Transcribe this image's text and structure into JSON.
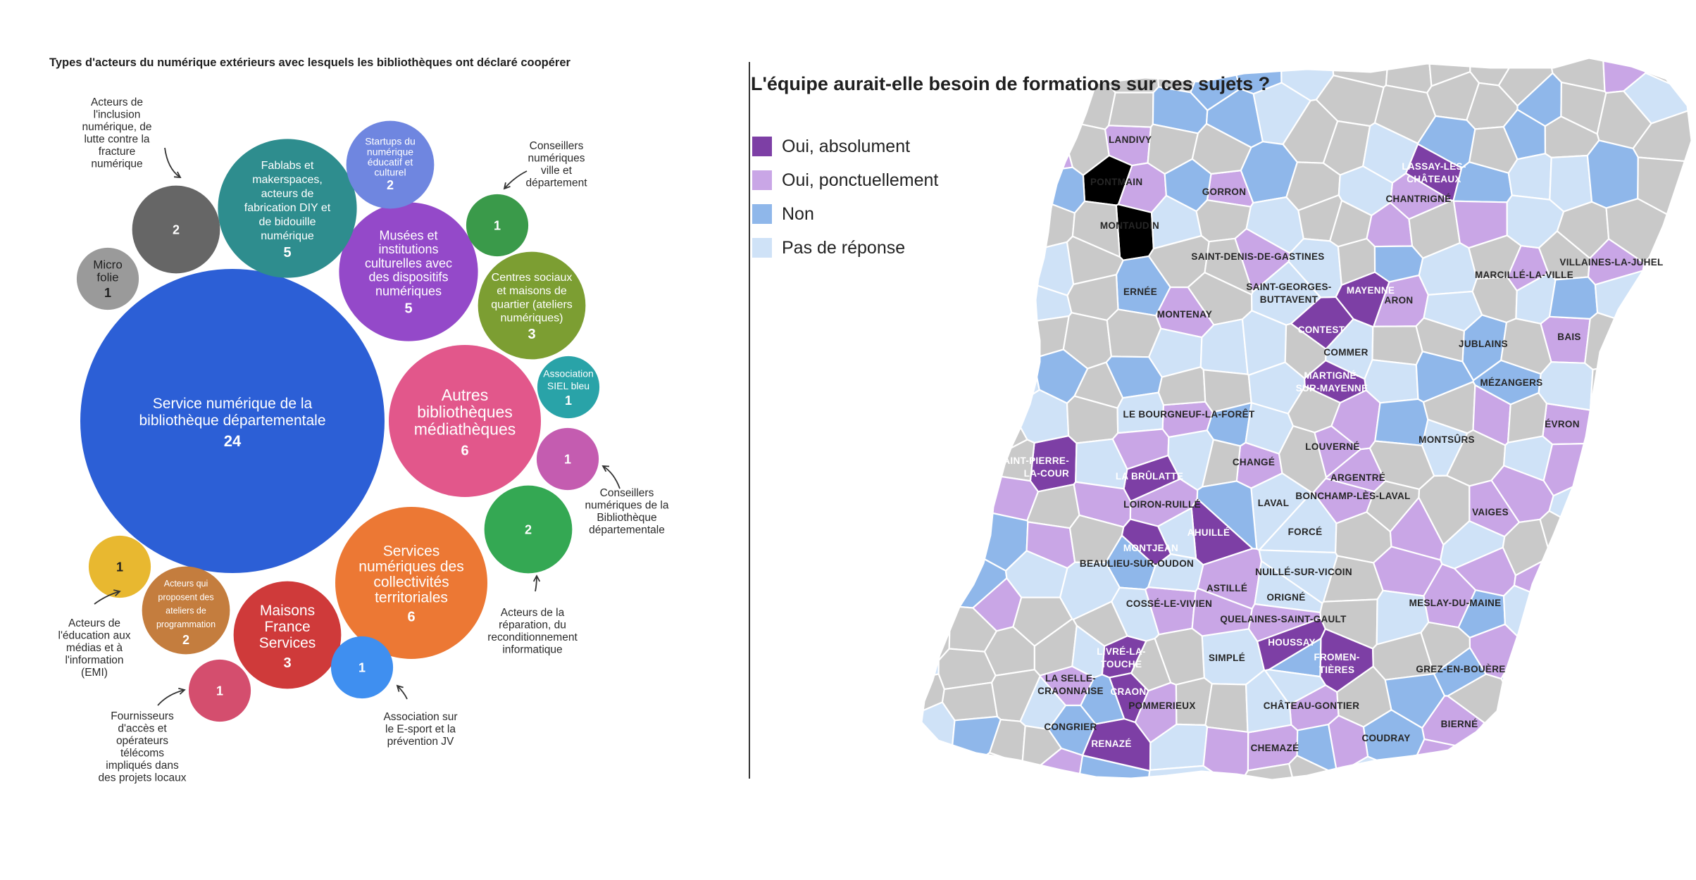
{
  "chart_data": [
    {
      "type": "bubble",
      "title": "Types d'acteurs du numérique extérieurs avec lesquels les bibliothèques ont déclaré coopérer",
      "bubbles": [
        {
          "label": [
            "Service numérique de la",
            "bibliothèque départementale"
          ],
          "value": 24,
          "color": "#2c5fd6",
          "text": "#ffffff"
        },
        {
          "label": [
            "Autres",
            "bibliothèques",
            "médiathèques"
          ],
          "value": 6,
          "color": "#e2578b",
          "text": "#ffffff"
        },
        {
          "label": [
            "Services",
            "numériques des",
            "collectivités",
            "territoriales"
          ],
          "value": 6,
          "color": "#ec7834",
          "text": "#ffffff"
        },
        {
          "label": [
            "Musées et",
            "institutions",
            "culturelles avec",
            "des dispositifs",
            "numériques"
          ],
          "value": 5,
          "color": "#9449c9",
          "text": "#ffffff"
        },
        {
          "label": [
            "Fablabs et",
            "makerspaces,",
            "acteurs de",
            "fabrication DIY et",
            "de bidouille",
            "numérique"
          ],
          "value": 5,
          "color": "#2e8d8e",
          "text": "#ffffff"
        },
        {
          "label": [
            "Maisons",
            "France",
            "Services"
          ],
          "value": 3,
          "color": "#cf3a3a",
          "text": "#ffffff"
        },
        {
          "label": [
            "Centres sociaux",
            "et maisons de",
            "quartier (ateliers",
            "numériques)"
          ],
          "value": 3,
          "color": "#7c9e32",
          "text": "#ffffff"
        },
        {
          "label": [],
          "value": 2,
          "color": "#666666",
          "text": "#ffffff"
        },
        {
          "label": [],
          "value": 2,
          "color": "#34a853",
          "text": "#ffffff"
        },
        {
          "label": [
            "Startups du",
            "numérique",
            "éducatif et",
            "culturel"
          ],
          "value": 2,
          "color": "#6f86e0",
          "text": "#ffffff"
        },
        {
          "label": [
            "Acteurs qui",
            "proposent des",
            "ateliers de",
            "programmation"
          ],
          "value": 2,
          "color": "#c47d3e",
          "text": "#ffffff"
        },
        {
          "label": [
            "Micro",
            "folie"
          ],
          "value": 1,
          "color": "#9a9a9a",
          "text": "#1f1f1f"
        },
        {
          "label": [],
          "value": 1,
          "color": "#3a9a4a",
          "text": "#ffffff"
        },
        {
          "label": [
            "Association",
            "SIEL bleu"
          ],
          "value": 1,
          "color": "#29a3a8",
          "text": "#ffffff"
        },
        {
          "label": [],
          "value": 1,
          "color": "#c45cb0",
          "text": "#ffffff"
        },
        {
          "label": [],
          "value": 1,
          "color": "#e8b830",
          "text": "#1f1f1f"
        },
        {
          "label": [],
          "value": 1,
          "color": "#d44e6e",
          "text": "#ffffff"
        },
        {
          "label": [],
          "value": 1,
          "color": "#3f8ff0",
          "text": "#ffffff"
        }
      ],
      "annotations": [
        {
          "lines": [
            "Acteurs de",
            "l'inclusion",
            "numérique, de",
            "lutte contre la",
            "fracture",
            "numérique"
          ]
        },
        {
          "lines": [
            "Conseillers",
            "numériques",
            "ville et",
            "département"
          ]
        },
        {
          "lines": [
            "Conseillers",
            "numériques de la",
            "Bibliothèque",
            "départementale"
          ]
        },
        {
          "lines": [
            "Acteurs de la",
            "réparation, du",
            "reconditionnement",
            "informatique"
          ]
        },
        {
          "lines": [
            "Association sur",
            "le E-sport et la",
            "prévention JV"
          ]
        },
        {
          "lines": [
            "Fournisseurs",
            "d'accès et",
            "opérateurs",
            "télécoms",
            "impliqués dans",
            "des projets locaux"
          ]
        },
        {
          "lines": [
            "Acteurs de",
            "l'éducation aux",
            "médias et à",
            "l'information",
            "(EMI)"
          ]
        }
      ]
    },
    {
      "type": "choropleth",
      "title": "L'équipe aurait-elle besoin de formations sur ces sujets ?",
      "legend": [
        {
          "label": "Oui, absolument",
          "color": "#7d3fa5"
        },
        {
          "label": "Oui, ponctuellement",
          "color": "#c9a6e6"
        },
        {
          "label": "Non",
          "color": "#8fb7ea"
        },
        {
          "label": "Pas de réponse",
          "color": "#cfe2f7"
        }
      ],
      "no_data_color": "#c9c9c9",
      "places": [
        {
          "name": "LANDIVY",
          "cat": 1
        },
        {
          "name": "PONTMAIN",
          "cat": 4
        },
        {
          "name": "GORRON",
          "cat": 1
        },
        {
          "name": "LASSAY-LES-\nCHÂTEAUX",
          "cat": 0
        },
        {
          "name": "CHANTRIGNÉ",
          "cat": 1
        },
        {
          "name": "MONTAUDIN",
          "cat": 4
        },
        {
          "name": "SAINT-DENIS-DE-GASTINES",
          "cat": 1
        },
        {
          "name": "VILLAINES-LA-JUHEL",
          "cat": 1
        },
        {
          "name": "MARCILLÉ-LA-VILLE",
          "cat": 1
        },
        {
          "name": "ERNÉE",
          "cat": 2
        },
        {
          "name": "SAINT-GEORGES-\nBUTTAVENT",
          "cat": 3
        },
        {
          "name": "MAYENNE",
          "cat": 0
        },
        {
          "name": "ARON",
          "cat": 1
        },
        {
          "name": "MONTENAY",
          "cat": 1
        },
        {
          "name": "CONTEST",
          "cat": 0
        },
        {
          "name": "JUBLAINS",
          "cat": 2
        },
        {
          "name": "BAIS",
          "cat": 1
        },
        {
          "name": "COMMER",
          "cat": 3
        },
        {
          "name": "MARTIGNÉ-\nSUR-MAYENNE",
          "cat": 0
        },
        {
          "name": "MÉZANGERS",
          "cat": 2
        },
        {
          "name": "LE BOURGNEUF-LA-FORÊT",
          "cat": 1
        },
        {
          "name": "ÉVRON",
          "cat": 1
        },
        {
          "name": "MONTSÛRS",
          "cat": 3
        },
        {
          "name": "LOUVERNÉ",
          "cat": 1
        },
        {
          "name": "SAINT-PIERRE-\nLA-COUR",
          "cat": 0
        },
        {
          "name": "LA BRÛLATTE",
          "cat": 0
        },
        {
          "name": "CHANGÉ",
          "cat": 1
        },
        {
          "name": "ARGENTRÉ",
          "cat": 1
        },
        {
          "name": "LOIRON-RUILLÉ",
          "cat": 1
        },
        {
          "name": "LAVAL",
          "cat": 3
        },
        {
          "name": "BONCHAMP-LÈS-LAVAL",
          "cat": 1
        },
        {
          "name": "VAIGES",
          "cat": 1
        },
        {
          "name": "AHUILLÉ",
          "cat": 0
        },
        {
          "name": "FORCÉ",
          "cat": 3
        },
        {
          "name": "MONTJEAN",
          "cat": 0
        },
        {
          "name": "BEAULIEU-SUR-OUDON",
          "cat": 2
        },
        {
          "name": "NUILLÉ-SUR-VICOIN",
          "cat": 3
        },
        {
          "name": "ASTILLÉ",
          "cat": 1
        },
        {
          "name": "ORIGNÉ",
          "cat": 3
        },
        {
          "name": "COSSÉ-LE-VIVIEN",
          "cat": 1
        },
        {
          "name": "MESLAY-DU-MAINE",
          "cat": 1
        },
        {
          "name": "QUELAINES-SAINT-GAULT",
          "cat": 1
        },
        {
          "name": "HOUSSAY",
          "cat": 0
        },
        {
          "name": "LIVRÉ-LA-\nTOUCHE",
          "cat": 0
        },
        {
          "name": "SIMPLÉ",
          "cat": 3
        },
        {
          "name": "FROMEN-\nTIÈRES",
          "cat": 0
        },
        {
          "name": "GREZ-EN-BOUÈRE",
          "cat": 2
        },
        {
          "name": "LA SELLE-\nCRAONNAISE",
          "cat": 1
        },
        {
          "name": "CRAON",
          "cat": 0
        },
        {
          "name": "POMMERIEUX",
          "cat": 1
        },
        {
          "name": "CHÂTEAU-GONTIER",
          "cat": 1
        },
        {
          "name": "CONGRIER",
          "cat": 2
        },
        {
          "name": "BIERNÉ",
          "cat": 1
        },
        {
          "name": "COUDRAY",
          "cat": 2
        },
        {
          "name": "RENAZÉ",
          "cat": 0
        },
        {
          "name": "CHEMAZÉ",
          "cat": 1
        }
      ]
    }
  ]
}
